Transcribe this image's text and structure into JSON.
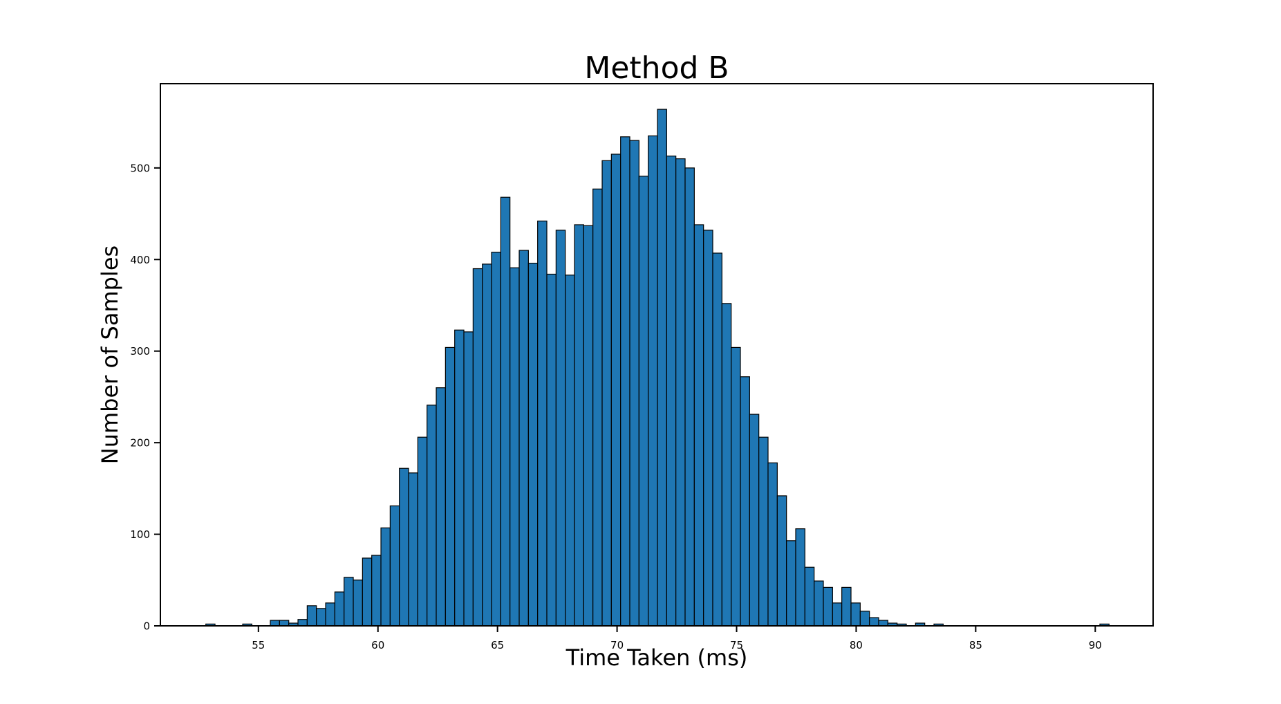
{
  "chart_data": {
    "type": "bar",
    "subtype": "histogram",
    "title": "Method B",
    "xlabel": "Time Taken (ms)",
    "ylabel": "Number of Samples",
    "x_ticks": [
      55,
      60,
      65,
      70,
      75,
      80,
      85,
      90
    ],
    "y_ticks": [
      0,
      100,
      200,
      300,
      400,
      500
    ],
    "xlim": [
      50.9,
      92.42
    ],
    "ylim": [
      0,
      592
    ],
    "grid": false,
    "legend": false,
    "background_color": "#ffffff",
    "bar_color": "#1f77b4",
    "bar_edge_color": "#000000",
    "axis_color": "#000000",
    "histogram": {
      "bin_start": 52.8,
      "bin_width": 0.3855,
      "counts": [
        2,
        0,
        0,
        0,
        2,
        0,
        0,
        6,
        6,
        3,
        7,
        22,
        19,
        25,
        37,
        53,
        50,
        74,
        77,
        107,
        131,
        172,
        167,
        206,
        241,
        260,
        304,
        323,
        321,
        390,
        395,
        408,
        468,
        391,
        410,
        396,
        442,
        384,
        432,
        383,
        438,
        437,
        477,
        508,
        515,
        534,
        530,
        491,
        535,
        564,
        513,
        510,
        500,
        438,
        432,
        407,
        352,
        304,
        272,
        231,
        206,
        178,
        142,
        93,
        106,
        64,
        49,
        42,
        25,
        42,
        25,
        16,
        9,
        6,
        3,
        2,
        0,
        3,
        0,
        2,
        0,
        0,
        0,
        0,
        0,
        0,
        0,
        0,
        0,
        0,
        0,
        0,
        0,
        0,
        0,
        0,
        0,
        2
      ]
    }
  }
}
